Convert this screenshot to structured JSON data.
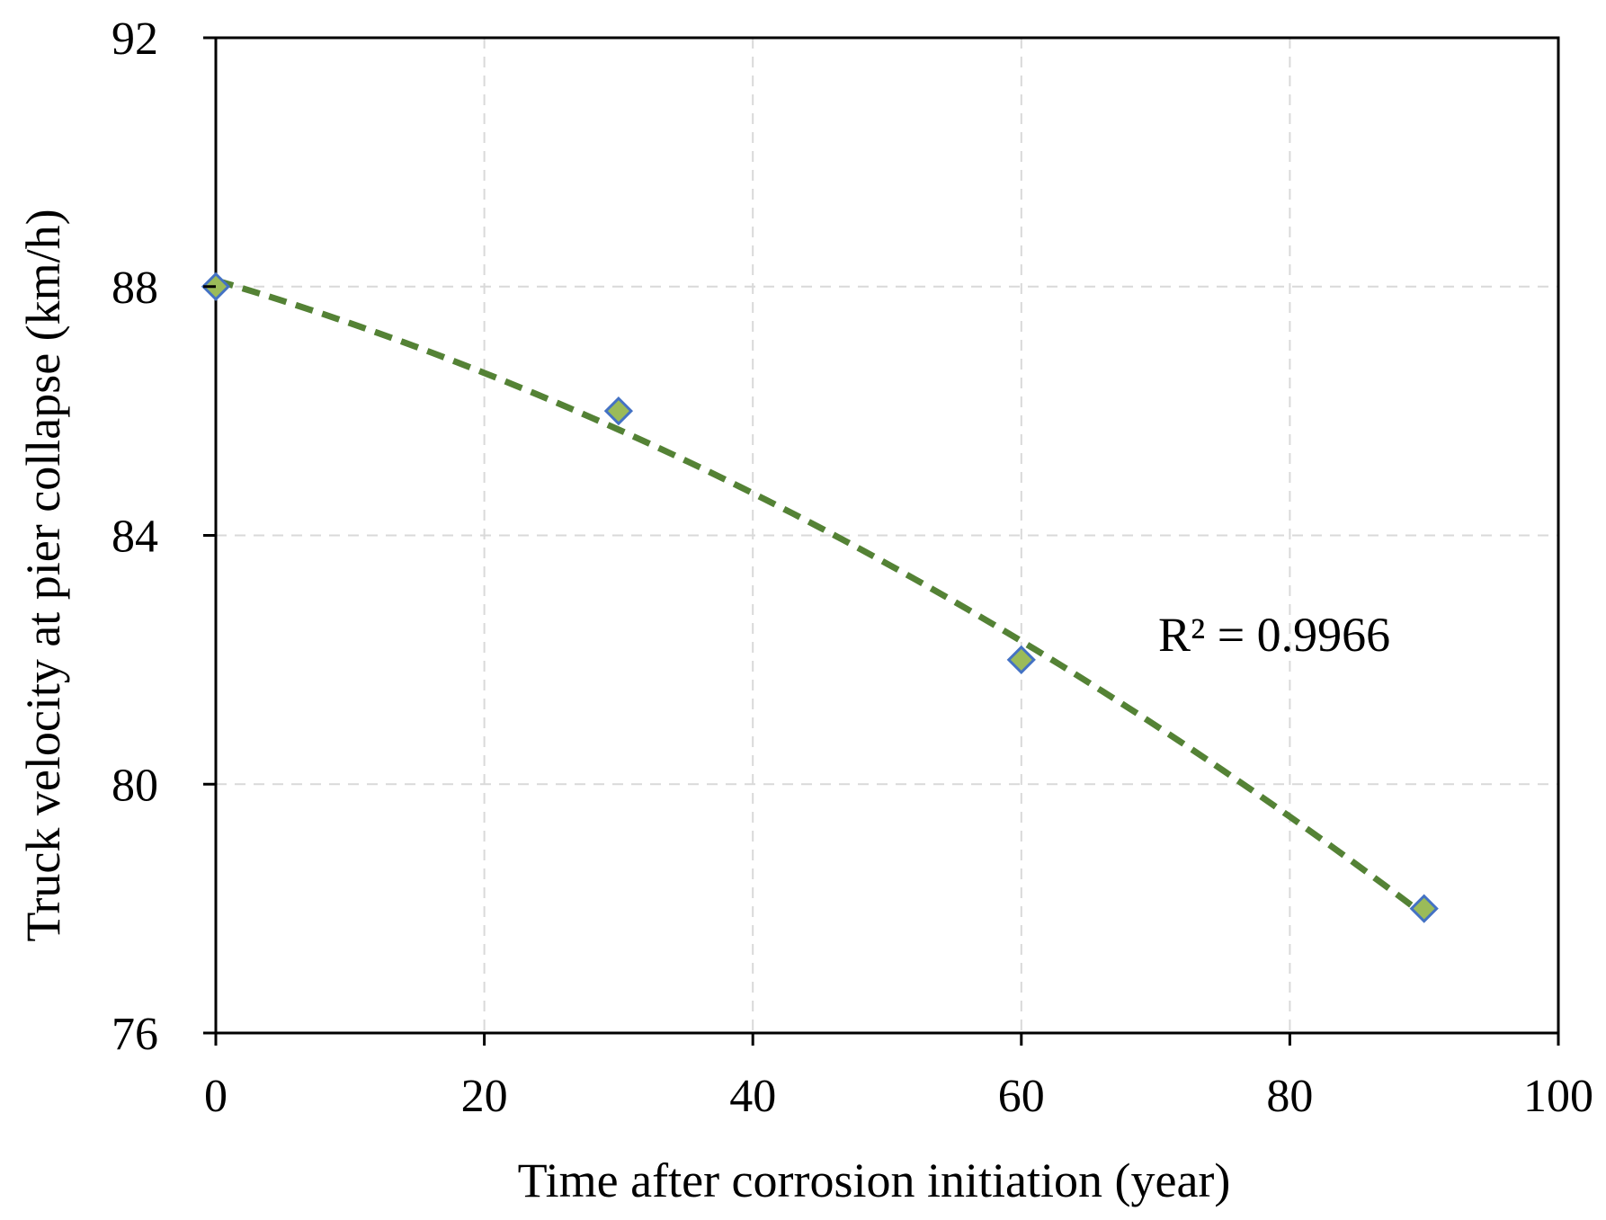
{
  "chart_data": {
    "type": "scatter",
    "title": "",
    "xlabel": "Time after corrosion initiation (year)",
    "ylabel": "Truck velocity at pier collapse (km/h)",
    "xlim": [
      0,
      100
    ],
    "ylim": [
      76,
      92
    ],
    "xticks": [
      0,
      20,
      40,
      60,
      80,
      100
    ],
    "yticks": [
      76,
      80,
      84,
      88,
      92
    ],
    "xtick_labels": [
      "0",
      "20",
      "40",
      "60",
      "80",
      "100"
    ],
    "ytick_labels": [
      "76",
      "80",
      "84",
      "88",
      "92"
    ],
    "grid": true,
    "series": [
      {
        "name": "Data",
        "marker": "diamond",
        "x": [
          0,
          30,
          60,
          90
        ],
        "y": [
          88,
          86,
          82,
          78
        ],
        "color": "#9BBB59",
        "edge_color": "#4472C4"
      }
    ],
    "trendline": {
      "type": "polynomial-2",
      "x_range": [
        0,
        90
      ],
      "color": "#548235",
      "style": "dashed"
    },
    "annotation": {
      "text": "R² = 0.9966"
    }
  }
}
